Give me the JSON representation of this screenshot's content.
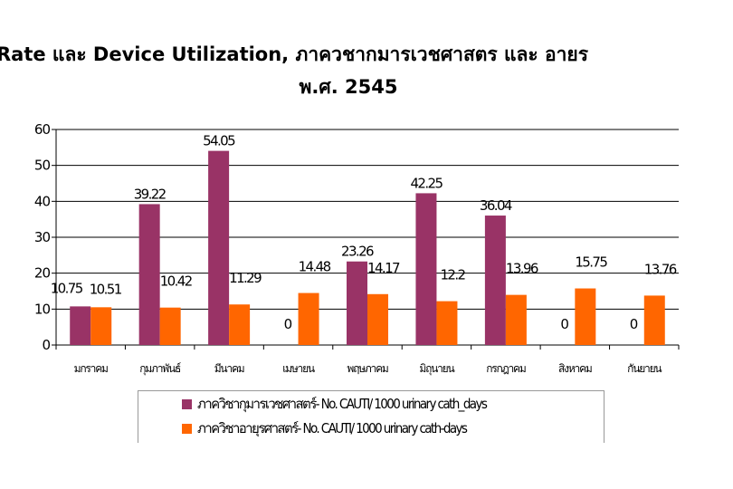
{
  "title_line1": "Rate และ Device Utilization, ภาควชากมารเวชศาสตร       และ อายร",
  "title_line2": "พ.ศ. 2545",
  "colors": {
    "series1": "#993366",
    "series2": "#ff6600",
    "gridline": "#000000"
  },
  "chart_data": {
    "type": "bar",
    "categories": [
      "มกราคม",
      "กุมภาพันธ์",
      "มีนาคม",
      "เมษายน",
      "พฤษภาคม",
      "มิถุนายน",
      "กรกฎาคม",
      "สิงหาคม",
      "กันยายน"
    ],
    "series": [
      {
        "name": "ภาควิชากุมารเวชศาสตร์- No. CAUTI/ 1000 urinary cath_days",
        "values": [
          10.75,
          39.22,
          54.05,
          0,
          23.26,
          42.25,
          36.04,
          0,
          0
        ],
        "labels": [
          "10.75",
          "39.22",
          "54.05",
          "0",
          "23.26",
          "42.25",
          "36.04",
          "0",
          "0"
        ]
      },
      {
        "name": "ภาควิชาอายุรศาสตร์- No. CAUTI/ 1000 urinary cath-days",
        "values": [
          10.51,
          10.42,
          11.29,
          14.48,
          14.17,
          12.2,
          13.96,
          15.75,
          13.76
        ],
        "labels": [
          "10.51",
          "10.42",
          "11.29",
          "14.48",
          "14.17",
          "12.2",
          "13.96",
          "15.75",
          "13.76"
        ]
      }
    ],
    "ylim": [
      0,
      60
    ],
    "yticks": [
      "0",
      "10",
      "20",
      "30",
      "40",
      "50",
      "60"
    ],
    "grid": true,
    "legend_position": "bottom"
  }
}
